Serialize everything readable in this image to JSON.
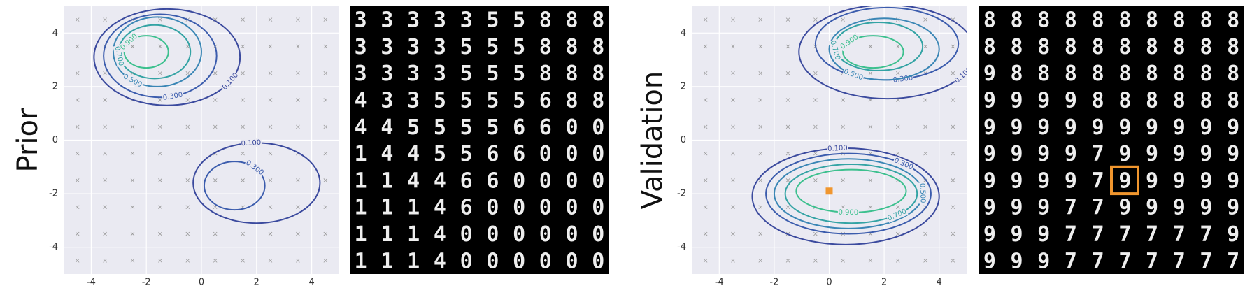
{
  "chart_data": [
    {
      "type": "contour",
      "ylabel": "Prior",
      "xlim": [
        -5,
        5
      ],
      "ylim": [
        -5,
        5
      ],
      "xticks": [
        -4,
        -2,
        0,
        2,
        4
      ],
      "yticks": [
        -4,
        -2,
        0,
        2,
        4
      ],
      "grid": true,
      "contours": [
        {
          "level": {
            "value": 0.1,
            "label": "0.100"
          },
          "color": "#3b4a9e",
          "center": [
            -1.25,
            3.1
          ],
          "radii": [
            2.65,
            1.8
          ]
        },
        {
          "level": {
            "value": 0.3,
            "label": "0.300"
          },
          "color": "#3b5cad",
          "center": [
            -1.5,
            3.15
          ],
          "radii": [
            2.05,
            1.55
          ]
        },
        {
          "level": {
            "value": 0.5,
            "label": "0.500"
          },
          "color": "#3a86b5",
          "center": [
            -1.6,
            3.3
          ],
          "radii": [
            1.6,
            1.3
          ]
        },
        {
          "level": {
            "value": 0.7,
            "label": "0.700"
          },
          "color": "#33a3a4",
          "center": [
            -1.7,
            3.3
          ],
          "radii": [
            1.3,
            1.0
          ]
        },
        {
          "level": {
            "value": 0.9,
            "label": "0.900"
          },
          "color": "#3cc08e",
          "center": [
            -2.0,
            3.3
          ],
          "radii": [
            0.8,
            0.6
          ]
        },
        {
          "level": {
            "value": 0.1,
            "label": "0.100"
          },
          "color": "#3b4a9e",
          "center": [
            2.0,
            -1.6
          ],
          "radii": [
            2.3,
            1.5
          ]
        },
        {
          "level": {
            "value": 0.3,
            "label": "0.300"
          },
          "color": "#3b5cad",
          "center": [
            1.2,
            -1.7
          ],
          "radii": [
            1.1,
            0.9
          ]
        }
      ],
      "digits": [
        "3333355888",
        "3333555888",
        "3333555888",
        "4335555688",
        "4455556600",
        "1445566000",
        "1144660000",
        "1114600000",
        "1114000000",
        "1114000000"
      ]
    },
    {
      "type": "contour",
      "ylabel": "Validation",
      "xlim": [
        -5,
        5
      ],
      "ylim": [
        -5,
        5
      ],
      "xticks": [
        -4,
        -2,
        0,
        2,
        4
      ],
      "yticks": [
        -4,
        -2,
        0,
        2,
        4
      ],
      "grid": true,
      "contours": [
        {
          "level": {
            "value": 0.1,
            "label": "0.100"
          },
          "color": "#3b4a9e",
          "center": [
            2.1,
            3.3
          ],
          "radii": [
            3.2,
            1.75
          ]
        },
        {
          "level": {
            "value": 0.3,
            "label": "0.300"
          },
          "color": "#3b5cad",
          "center": [
            2.1,
            3.6
          ],
          "radii": [
            2.6,
            1.35
          ]
        },
        {
          "level": {
            "value": 0.5,
            "label": "0.500"
          },
          "color": "#3a86b5",
          "center": [
            2.0,
            3.4
          ],
          "radii": [
            2.0,
            1.15
          ]
        },
        {
          "level": {
            "value": 0.7,
            "label": "0.700"
          },
          "color": "#33a3a4",
          "center": [
            1.8,
            3.5
          ],
          "radii": [
            1.6,
            0.9
          ]
        },
        {
          "level": {
            "value": 0.9,
            "label": "0.900"
          },
          "color": "#3cc08e",
          "center": [
            1.6,
            3.3
          ],
          "radii": [
            1.1,
            0.6
          ]
        },
        {
          "level": {
            "value": 0.1,
            "label": "0.100"
          },
          "color": "#3b4a9e",
          "center": [
            0.6,
            -2.1
          ],
          "radii": [
            3.4,
            1.8
          ]
        },
        {
          "level": {
            "value": 0.3,
            "label": "0.300"
          },
          "color": "#3b5cad",
          "center": [
            0.7,
            -2.0
          ],
          "radii": [
            3.0,
            1.5
          ]
        },
        {
          "level": {
            "value": 0.5,
            "label": "0.500"
          },
          "color": "#3a86b5",
          "center": [
            0.7,
            -2.0
          ],
          "radii": [
            2.7,
            1.3
          ]
        },
        {
          "level": {
            "value": 0.7,
            "label": "0.700"
          },
          "color": "#33a3a4",
          "center": [
            0.8,
            -2.0
          ],
          "radii": [
            2.4,
            1.1
          ]
        },
        {
          "level": {
            "value": 0.9,
            "label": "0.900"
          },
          "color": "#3cc08e",
          "center": [
            0.8,
            -1.9
          ],
          "radii": [
            2.0,
            0.8
          ]
        }
      ],
      "marker": {
        "x": 0,
        "y": -1.9,
        "color": "#f0962e"
      },
      "digits": [
        "8888888888",
        "8888888888",
        "9888888888",
        "9999888888",
        "9999999999",
        "9999799999",
        "9999799999",
        "9997799999",
        "9997777779",
        "9997777777"
      ]
    }
  ]
}
